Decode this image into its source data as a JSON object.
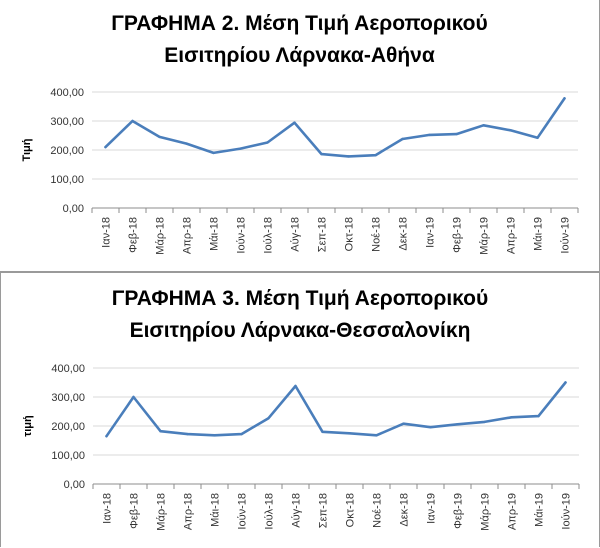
{
  "chart_data": [
    {
      "type": "line",
      "title_lines": [
        "ΓΡΑΦΗΜΑ 2. Μέση Τιμή Αεροπορικού",
        "Εισιτηρίου Λάρνακα-Αθήνα"
      ],
      "ylabel": "Τιμή",
      "xlabel": "",
      "ylim": [
        0,
        400
      ],
      "yticks": [
        "0,00",
        "100,00",
        "200,00",
        "300,00",
        "400,00"
      ],
      "categories": [
        "Ιαν-18",
        "Φεβ-18",
        "Μάρ-18",
        "Απρ-18",
        "Μάι-18",
        "Ιούν-18",
        "Ιούλ-18",
        "Αύγ-18",
        "Σεπ-18",
        "Οκτ-18",
        "Νοέ-18",
        "Δεκ-18",
        "Ιαν-19",
        "Φεβ-19",
        "Μάρ-19",
        "Απρ-19",
        "Μάι-19",
        "Ιούν-19"
      ],
      "series": [
        {
          "values": [
            210,
            300,
            245,
            222,
            190,
            205,
            226,
            294,
            186,
            178,
            182,
            238,
            252,
            255,
            285,
            268,
            242,
            378
          ]
        }
      ],
      "grid": true,
      "color": "#4a7ebb"
    },
    {
      "type": "line",
      "title_lines": [
        "ΓΡΑΦΗΜΑ 3. Μέση Τιμή Αεροπορικού",
        "Εισιτηρίου Λάρνακα-Θεσσαλονίκη"
      ],
      "ylabel": "τιμή",
      "xlabel": "",
      "ylim": [
        0,
        400
      ],
      "yticks": [
        "0,00",
        "100,00",
        "200,00",
        "300,00",
        "400,00"
      ],
      "categories": [
        "Ιαν-18",
        "Φεβ-18",
        "Μάρ-18",
        "Απρ-18",
        "Μάι-18",
        "Ιούν-18",
        "Ιούλ-18",
        "Αύγ-18",
        "Σεπ-18",
        "Οκτ-18",
        "Νοέ-18",
        "Δεκ-18",
        "Ιαν-19",
        "Φεβ-19",
        "Μάρ-19",
        "Απρ-19",
        "Μάι-19",
        "Ιούν-19"
      ],
      "series": [
        {
          "values": [
            165,
            300,
            182,
            172,
            168,
            172,
            227,
            338,
            180,
            175,
            168,
            208,
            196,
            206,
            214,
            230,
            234,
            350
          ]
        }
      ],
      "grid": true,
      "color": "#4a7ebb"
    }
  ]
}
